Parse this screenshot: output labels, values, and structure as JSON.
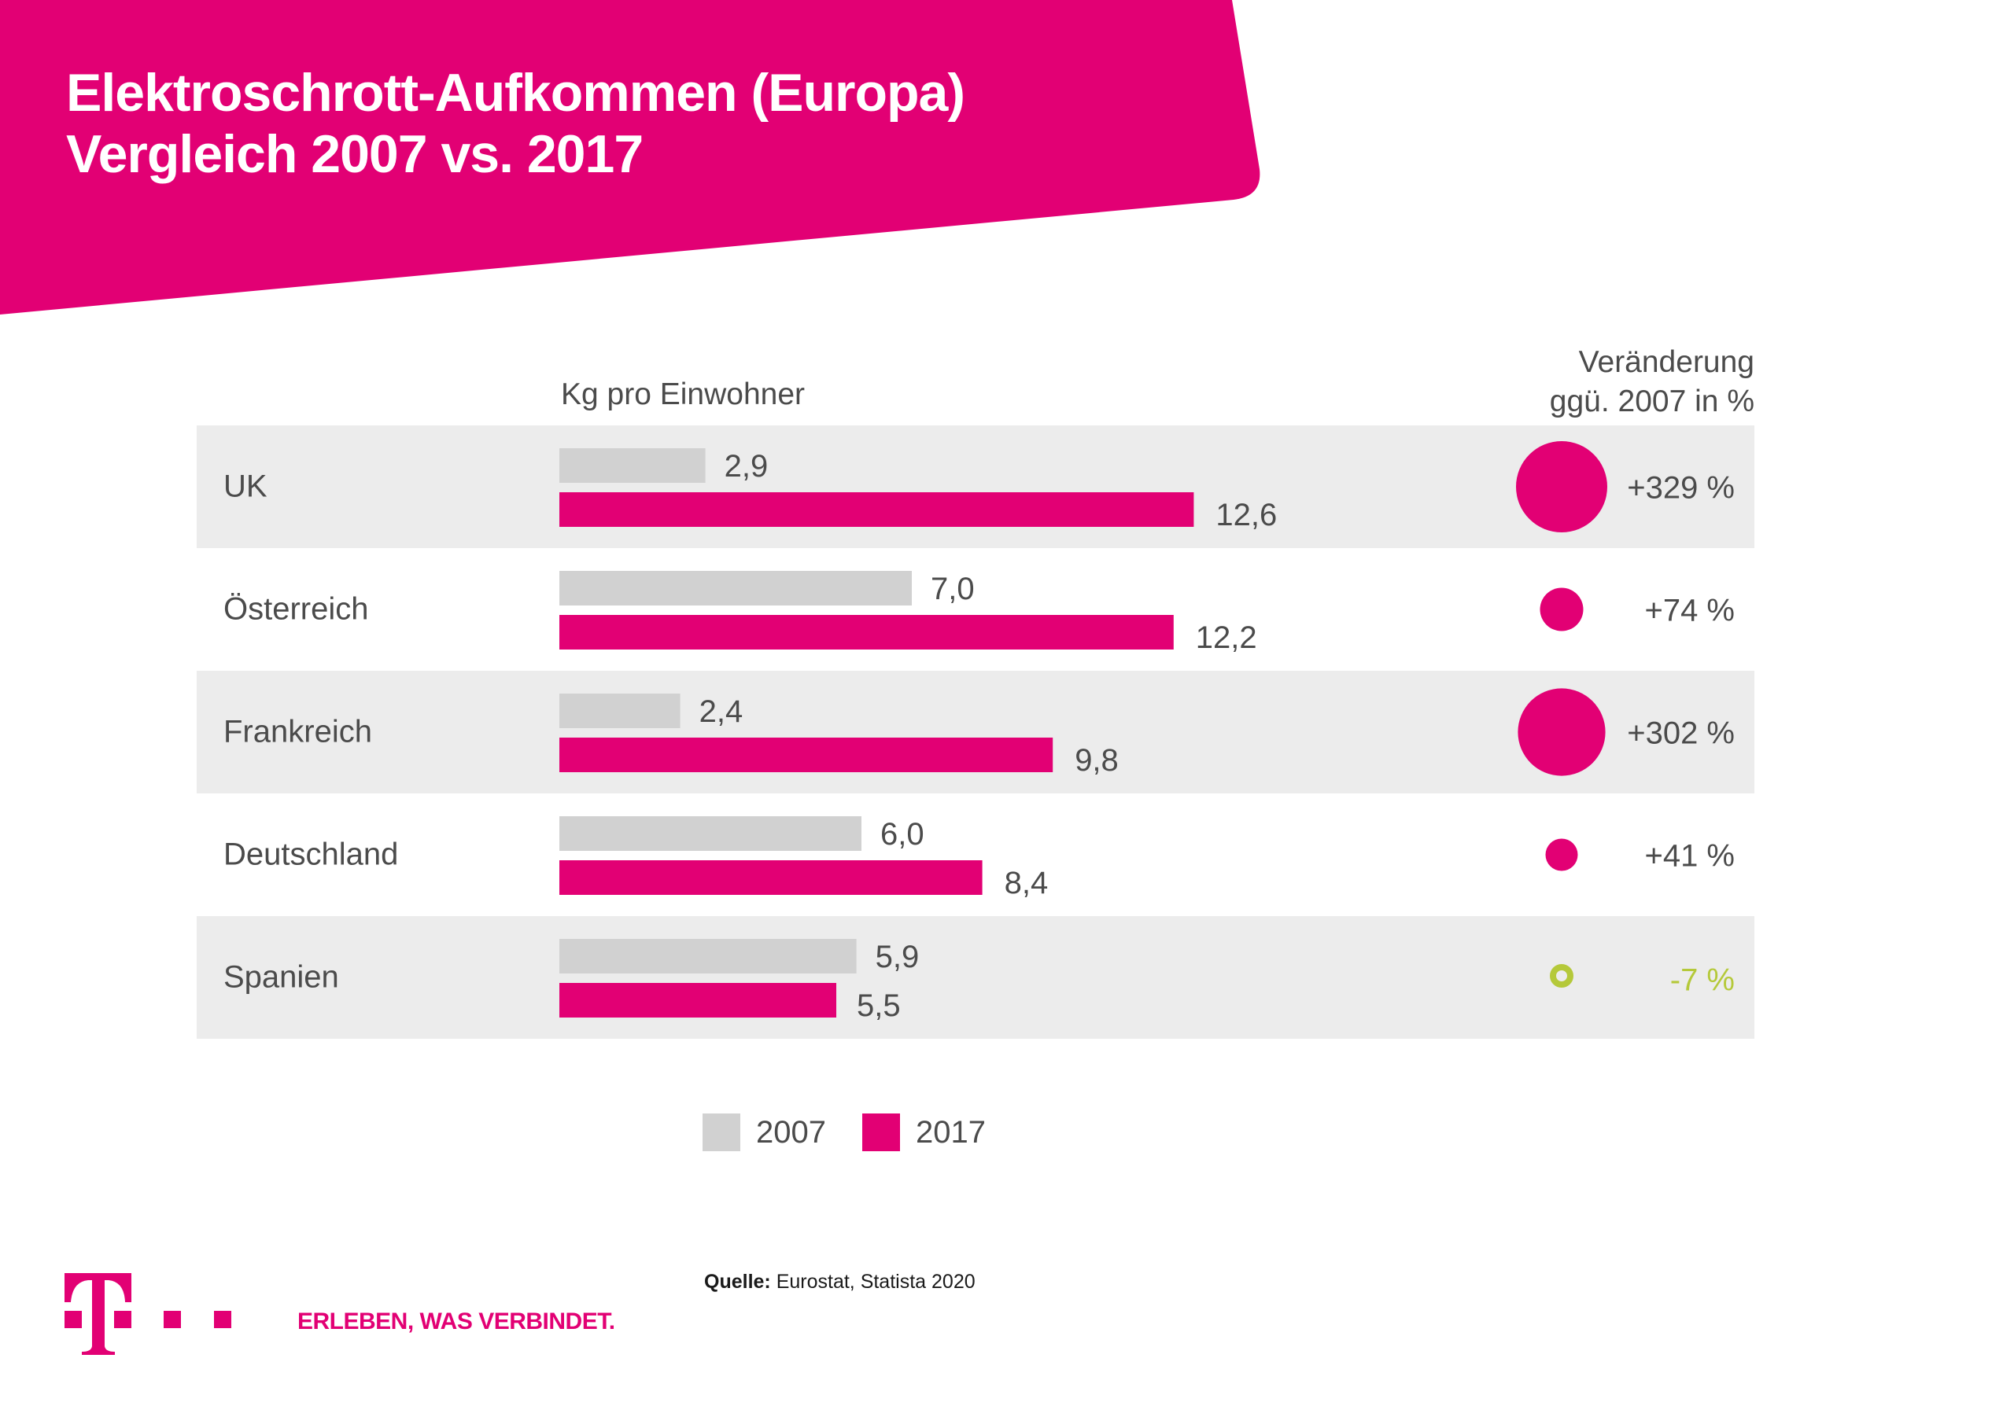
{
  "header": {
    "title_line_1": "Elektroschrott-Aufkommen (Europa)",
    "title_line_2": "Vergleich 2007 vs.  2017"
  },
  "colors": {
    "brand": "#e20074",
    "bar_2007": "#d1d1d1",
    "row_band": "#ececec",
    "text": "#4b4b4b",
    "negative": "#b5c93a"
  },
  "chart_data": {
    "type": "bar",
    "orientation": "horizontal",
    "title": "Elektroschrott-Aufkommen (Europa) Vergleich 2007 vs. 2017",
    "xlabel": "Kg pro Einwohner",
    "ylabel": "",
    "categories": [
      "UK",
      "Österreich",
      "Frankreich",
      "Deutschland",
      "Spanien"
    ],
    "series": [
      {
        "name": "2007",
        "values": [
          2.9,
          7.0,
          2.4,
          6.0,
          5.9
        ],
        "labels": [
          "2,9",
          "7,0",
          "2,4",
          "6,0",
          "5,9"
        ]
      },
      {
        "name": "2017",
        "values": [
          12.6,
          12.2,
          9.8,
          8.4,
          5.5
        ],
        "labels": [
          "12,6",
          "12,2",
          "9,8",
          "8,4",
          "5,5"
        ]
      }
    ],
    "change_header_line_1": "Veränderung",
    "change_header_line_2": "ggü. 2007 in %",
    "change_percent": [
      329,
      74,
      302,
      41,
      -7
    ],
    "change_labels": [
      "+329 %",
      "+74 %",
      "+302 %",
      "+41 %",
      "-7 %"
    ],
    "legend": [
      "2007",
      "2017"
    ],
    "legend_position": "bottom",
    "grid": false
  },
  "footer": {
    "source_label": "Quelle:",
    "source_text": " Eurostat, Statista 2020",
    "tagline": "ERLEBEN, WAS VERBINDET."
  }
}
